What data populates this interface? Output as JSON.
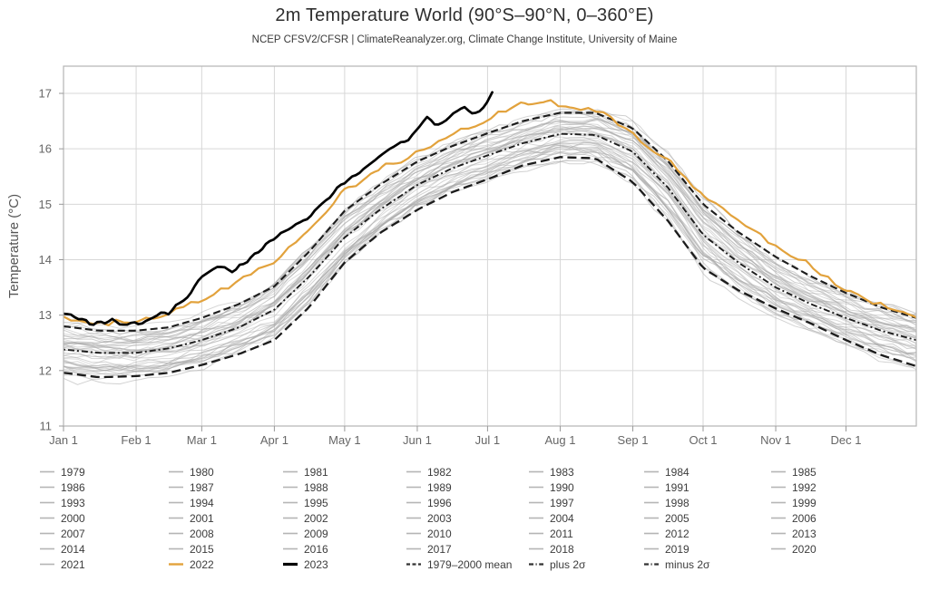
{
  "header": {
    "title": "2m Temperature World (90°S–90°N, 0–360°E)",
    "subtitle": "NCEP CFSV2/CFSR | ClimateReanalyzer.org, Climate Change Institute, University of Maine"
  },
  "chart_data": {
    "type": "line",
    "title": "2m Temperature World (90°S–90°N, 0–360°E)",
    "xlabel": "",
    "ylabel": "Temperature (°C)",
    "ylim": [
      11,
      17.5
    ],
    "x_unit": "day_of_year",
    "grid": true,
    "legend_position": "bottom",
    "xticks": {
      "days": [
        0,
        31,
        59,
        90,
        120,
        151,
        181,
        212,
        243,
        273,
        304,
        334
      ],
      "labels": [
        "Jan 1",
        "Feb 1",
        "Mar 1",
        "Apr 1",
        "May 1",
        "Jun 1",
        "Jul 1",
        "Aug 1",
        "Sep 1",
        "Oct 1",
        "Nov 1",
        "Dec 1"
      ]
    },
    "yticks": [
      11,
      12,
      13,
      14,
      15,
      16,
      17
    ],
    "colors": {
      "ensemble": "#a8a8a8",
      "y2022": "#E2A23C",
      "y2023": "#000000",
      "stats": "#1c1c1c",
      "gridline": "#d7d7d7",
      "frame": "#b5b5b5",
      "tick": "#999999"
    },
    "ensemble": {
      "year_start": 1979,
      "year_end": 2021,
      "count": 43,
      "note": "individual years 1979-2021 as thin gray daily traces spanning roughly the minus-2-sigma to plus-2-sigma band; earlier years cooler, later years warmer"
    },
    "series": [
      {
        "name": "1979–2000 mean",
        "style": "dash-dot",
        "width": 1.9,
        "x": [
          0,
          15,
          31,
          45,
          59,
          75,
          90,
          105,
          120,
          135,
          151,
          166,
          181,
          196,
          212,
          227,
          243,
          258,
          273,
          288,
          304,
          319,
          334,
          349,
          364
        ],
        "y": [
          12.38,
          12.32,
          12.32,
          12.4,
          12.55,
          12.78,
          13.1,
          13.7,
          14.4,
          14.9,
          15.35,
          15.65,
          15.88,
          16.1,
          16.27,
          16.25,
          15.95,
          15.3,
          14.45,
          13.95,
          13.5,
          13.2,
          12.95,
          12.72,
          12.55
        ]
      },
      {
        "name": "plus 2σ",
        "style": "dashed",
        "width": 2.1,
        "x": [
          0,
          15,
          31,
          45,
          59,
          75,
          90,
          105,
          120,
          135,
          151,
          166,
          181,
          196,
          212,
          227,
          243,
          258,
          273,
          288,
          304,
          319,
          334,
          349,
          364
        ],
        "y": [
          12.8,
          12.72,
          12.72,
          12.78,
          12.95,
          13.2,
          13.52,
          14.15,
          14.88,
          15.35,
          15.77,
          16.05,
          16.28,
          16.5,
          16.65,
          16.65,
          16.37,
          15.78,
          15.0,
          14.5,
          14.05,
          13.7,
          13.4,
          13.14,
          12.95
        ]
      },
      {
        "name": "minus 2σ",
        "style": "long-dash",
        "width": 2.3,
        "x": [
          0,
          15,
          31,
          45,
          59,
          75,
          90,
          105,
          120,
          135,
          151,
          166,
          181,
          196,
          212,
          227,
          243,
          258,
          273,
          288,
          304,
          319,
          334,
          349,
          364
        ],
        "y": [
          11.96,
          11.88,
          11.9,
          11.96,
          12.1,
          12.3,
          12.55,
          13.15,
          13.95,
          14.48,
          14.9,
          15.22,
          15.45,
          15.7,
          15.85,
          15.83,
          15.4,
          14.7,
          13.85,
          13.45,
          13.12,
          12.85,
          12.55,
          12.28,
          12.08
        ]
      },
      {
        "name": "2022",
        "style": "solid",
        "width": 2.2,
        "x": [
          0,
          10,
          20,
          31,
          45,
          59,
          75,
          90,
          105,
          120,
          135,
          151,
          166,
          181,
          196,
          212,
          227,
          243,
          258,
          273,
          288,
          304,
          319,
          334,
          349,
          364
        ],
        "y": [
          12.95,
          12.8,
          12.88,
          12.9,
          13.05,
          13.3,
          13.62,
          13.98,
          14.52,
          15.25,
          15.65,
          15.95,
          16.25,
          16.55,
          16.82,
          16.8,
          16.72,
          16.28,
          15.82,
          15.15,
          14.72,
          14.22,
          13.92,
          13.42,
          13.15,
          13.0
        ]
      },
      {
        "name": "2023",
        "style": "solid",
        "width": 2.7,
        "note": "partial year; trace ends just after Jul 1 with spike to 17.0",
        "x": [
          0,
          5,
          12,
          20,
          31,
          38,
          45,
          52,
          59,
          66,
          73,
          80,
          90,
          97,
          104,
          111,
          118,
          125,
          132,
          139,
          146,
          151,
          155,
          159,
          163,
          167,
          171,
          175,
          178,
          181,
          183
        ],
        "y": [
          13.05,
          12.97,
          12.86,
          12.92,
          12.83,
          12.95,
          13.08,
          13.3,
          13.7,
          13.88,
          13.82,
          14.05,
          14.42,
          14.55,
          14.72,
          15.02,
          15.32,
          15.5,
          15.72,
          15.95,
          16.12,
          16.32,
          16.55,
          16.42,
          16.52,
          16.68,
          16.75,
          16.66,
          16.7,
          16.85,
          17.02
        ]
      }
    ]
  },
  "legend": {
    "year_rows": [
      [
        "1979",
        "1980",
        "1981",
        "1982",
        "1983",
        "1984",
        "1985"
      ],
      [
        "1986",
        "1987",
        "1988",
        "1989",
        "1990",
        "1991",
        "1992"
      ],
      [
        "1993",
        "1994",
        "1995",
        "1996",
        "1997",
        "1998",
        "1999"
      ],
      [
        "2000",
        "2001",
        "2002",
        "2003",
        "2004",
        "2005",
        "2006"
      ],
      [
        "2007",
        "2008",
        "2009",
        "2010",
        "2011",
        "2012",
        "2013"
      ],
      [
        "2014",
        "2015",
        "2016",
        "2017",
        "2018",
        "2019",
        "2020"
      ]
    ],
    "final_row": [
      {
        "label": "2021",
        "swatch": "year"
      },
      {
        "label": "2022",
        "swatch": "y2022"
      },
      {
        "label": "2023",
        "swatch": "y2023"
      },
      {
        "label": "1979–2000 mean",
        "swatch": "mean"
      },
      {
        "label": "plus 2σ",
        "swatch": "sigma"
      },
      {
        "label": "minus 2σ",
        "swatch": "sigma"
      }
    ]
  }
}
